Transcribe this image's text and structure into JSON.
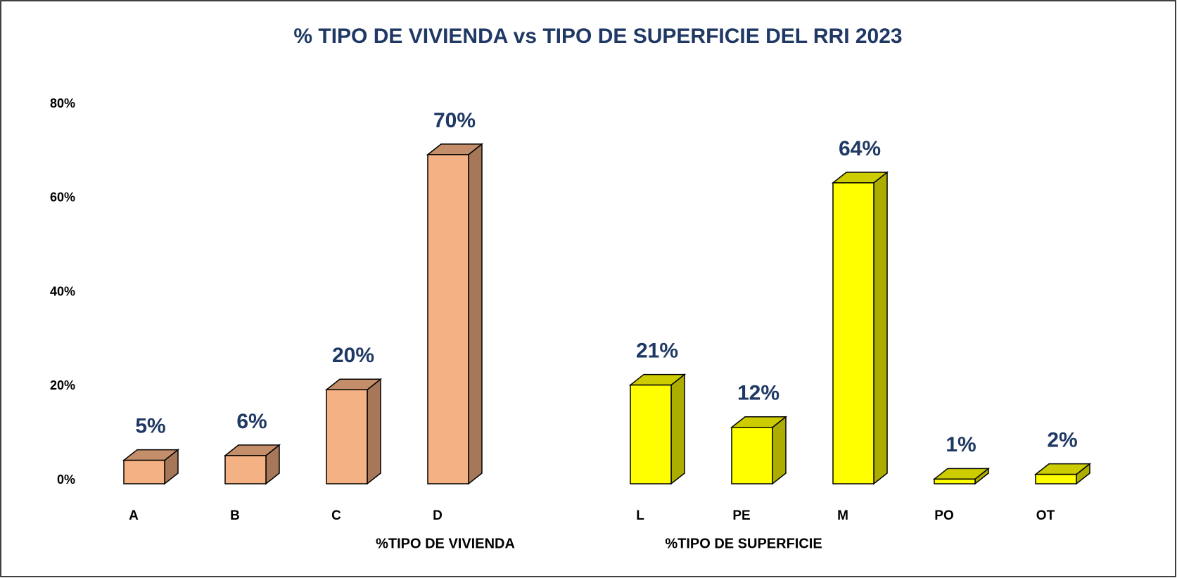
{
  "chart_data": {
    "type": "bar3d",
    "title": "% TIPO DE VIVIENDA vs TIPO DE SUPERFICIE DEL RRI 2023",
    "categories": [
      "A",
      "B",
      "C",
      "D",
      null,
      "L",
      "PE",
      "M",
      "PO",
      "OT"
    ],
    "series": [
      {
        "name": "%TIPO DE VIVIENDA",
        "color": "#f4b183",
        "values": [
          5,
          6,
          20,
          70,
          null,
          null,
          null,
          null,
          null,
          null
        ],
        "value_labels": [
          "5%",
          "6%",
          "20%",
          "70%",
          null,
          null,
          null,
          null,
          null,
          null
        ]
      },
      {
        "name": "%TIPO DE SUPERFICIE",
        "color": "#ffff00",
        "values": [
          null,
          null,
          null,
          null,
          null,
          21,
          12,
          64,
          1,
          2
        ],
        "value_labels": [
          null,
          null,
          null,
          null,
          null,
          "21%",
          "12%",
          "64%",
          "1%",
          "2%"
        ]
      }
    ],
    "ylim": [
      0,
      80
    ],
    "yticks": [
      {
        "value": 0,
        "label": "0%"
      },
      {
        "value": 20,
        "label": "20%"
      },
      {
        "value": 40,
        "label": "40%"
      },
      {
        "value": 60,
        "label": "60%"
      },
      {
        "value": 80,
        "label": "80%"
      }
    ],
    "grid": false
  }
}
